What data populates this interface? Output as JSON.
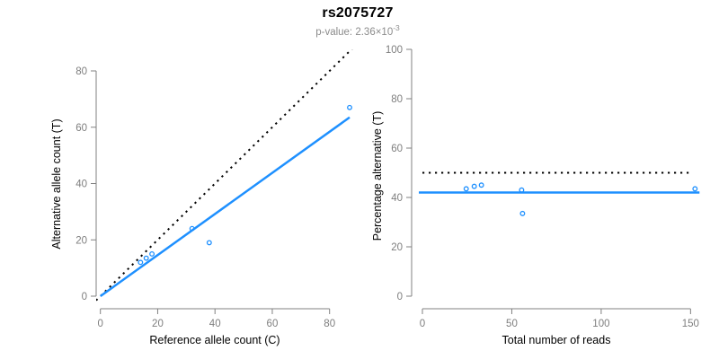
{
  "figure": {
    "title": "rs2075727",
    "subtitle": {
      "text": "p-value: 2.36×10",
      "exponent": "-3"
    }
  },
  "colors": {
    "accent_blue": "#1E90FF",
    "axis_gray": "#808080",
    "tick_label_gray": "#7e7e7e",
    "axis_title_black": "#000000",
    "subtitle_gray": "#8c8c8c",
    "dotted_line_black": "#000000"
  },
  "chart_data": [
    {
      "type": "scatter",
      "xlabel": "Reference allele count (C)",
      "ylabel": "Alternative allele count (T)",
      "xticks": [
        0,
        20,
        40,
        60,
        80
      ],
      "yticks": [
        0,
        20,
        40,
        60,
        80
      ],
      "xlim": [
        -1.5,
        89
      ],
      "ylim": [
        -2,
        88
      ],
      "grid": false,
      "legend": "none",
      "points": [
        [
          14,
          12
        ],
        [
          16,
          13.5
        ],
        [
          18,
          15
        ],
        [
          32,
          24
        ],
        [
          38,
          19
        ],
        [
          87,
          67
        ]
      ],
      "point_color": "#1E90FF",
      "lines": [
        {
          "name": "identity-line",
          "slope": 1,
          "intercept": 0,
          "x_range": [
            -1.5,
            88
          ],
          "style": "dotted",
          "color": "#000000",
          "width": 2
        },
        {
          "name": "fit-line",
          "slope": 0.73,
          "intercept": 0,
          "x_range": [
            0,
            87
          ],
          "style": "solid",
          "color": "#1E90FF",
          "width": 2.5
        }
      ]
    },
    {
      "type": "scatter",
      "xlabel": "Total number of reads",
      "ylabel": "Percentage alternative (T)",
      "xticks": [
        0,
        50,
        100,
        150
      ],
      "yticks": [
        0,
        20,
        40,
        60,
        80,
        100
      ],
      "xlim": [
        -3.5,
        161
      ],
      "ylim": [
        -2,
        100
      ],
      "grid": false,
      "legend": "none",
      "points": [
        [
          24.5,
          43.5
        ],
        [
          29,
          44.5
        ],
        [
          33,
          45
        ],
        [
          55.5,
          43
        ],
        [
          56,
          33.5
        ],
        [
          152.5,
          43.5
        ]
      ],
      "point_color": "#1E90FF",
      "lines": [
        {
          "name": "expected-50-percent-line",
          "slope": 0,
          "intercept": 50,
          "x_range": [
            0,
            150
          ],
          "style": "dotted",
          "color": "#000000",
          "width": 2
        },
        {
          "name": "mean-percentage-line",
          "slope": 0,
          "intercept": 42,
          "x_range": [
            -2,
            155
          ],
          "style": "solid",
          "color": "#1E90FF",
          "width": 2.5
        }
      ]
    }
  ]
}
